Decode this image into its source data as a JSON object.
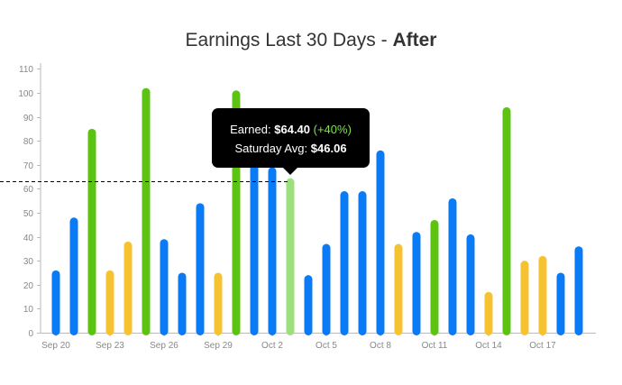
{
  "title": {
    "main": "Earnings Last 30 Days - ",
    "emphasis": "After"
  },
  "tooltip": {
    "earned_label": "Earned:",
    "earned_value": "$64.40",
    "earned_change": "(+40%)",
    "avg_label": "Saturday Avg:",
    "avg_value": "$46.06"
  },
  "colors": {
    "weekday": "#0a7bf5",
    "friday": "#f5c231",
    "saturday": "#5cc313",
    "highlight": "#9be07c",
    "axis": "#bbbbbb",
    "tooltip_bg": "#000000",
    "tooltip_change": "#7ee54a"
  },
  "chart_data": {
    "type": "bar",
    "title": "Earnings Last 30 Days - After",
    "xlabel": "",
    "ylabel": "",
    "ylim": [
      0,
      115
    ],
    "yticks": [
      0,
      10,
      20,
      30,
      40,
      50,
      60,
      70,
      80,
      90,
      100,
      110
    ],
    "grid": false,
    "reference_line": {
      "value": 63,
      "style": "dashed"
    },
    "highlighted_index": 13,
    "categories": [
      "Sep 20",
      "Sep 21",
      "Sep 22",
      "Sep 23",
      "Sep 24",
      "Sep 25",
      "Sep 26",
      "Sep 27",
      "Sep 28",
      "Sep 29",
      "Sep 30",
      "Oct 1",
      "Oct 2",
      "Oct 3",
      "Oct 4",
      "Oct 5",
      "Oct 6",
      "Oct 7",
      "Oct 8",
      "Oct 9",
      "Oct 10",
      "Oct 11",
      "Oct 12",
      "Oct 13",
      "Oct 14",
      "Oct 15",
      "Oct 16",
      "Oct 17",
      "Oct 18",
      "Oct 19"
    ],
    "xtick_labels": [
      "Sep 20",
      "Sep 23",
      "Sep 26",
      "Sep 29",
      "Oct 2",
      "Oct 5",
      "Oct 8",
      "Oct 11",
      "Oct 14",
      "Oct 17"
    ],
    "values": [
      26,
      48,
      85,
      26,
      38,
      102,
      39,
      25,
      54,
      25,
      101,
      77,
      69,
      64.4,
      24,
      37,
      59,
      59,
      76,
      37,
      42,
      47,
      56,
      41,
      17,
      94,
      30,
      32,
      25,
      36
    ],
    "bar_types": [
      "weekday",
      "weekday",
      "saturday",
      "friday",
      "friday",
      "saturday",
      "weekday",
      "weekday",
      "weekday",
      "friday",
      "saturday",
      "weekday",
      "weekday",
      "highlight",
      "weekday",
      "weekday",
      "weekday",
      "weekday",
      "weekday",
      "friday",
      "weekday",
      "saturday",
      "weekday",
      "weekday",
      "friday",
      "saturday",
      "friday",
      "friday",
      "weekday",
      "weekday"
    ]
  }
}
